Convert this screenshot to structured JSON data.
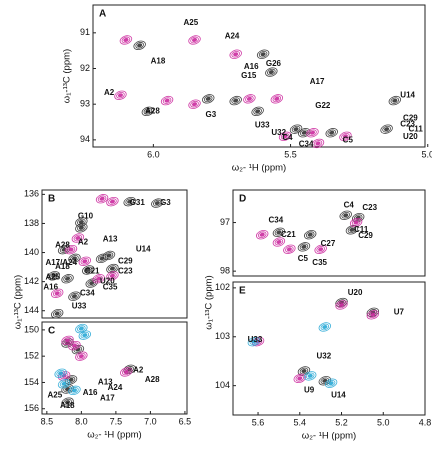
{
  "chart_data": [
    {
      "type": "scatter",
      "panel": "A",
      "xlabel": "ω₂- ¹H (ppm)",
      "ylabel": "ω₁-¹³C (ppm)",
      "xlim": [
        6.22,
        5.01
      ],
      "ylim": [
        90.22,
        94.2
      ],
      "xticks": [
        {
          "value": 6,
          "label": "6.0"
        },
        5.5,
        {
          "value": 5,
          "label": "5.0"
        }
      ],
      "yticks": [
        91,
        92,
        93,
        94
      ],
      "series": [
        {
          "color": "#333333",
          "x": [
            6.05,
            5.6,
            5.57,
            6.02,
            5.7,
            5.62,
            5.48,
            5.45,
            5.12,
            5.15,
            5.35,
            5.8
          ],
          "values": [
            91.35,
            91.6,
            92.1,
            93.2,
            92.9,
            93.2,
            93.7,
            93.8,
            92.9,
            93.7,
            93.8,
            92.85
          ]
        },
        {
          "color": "#cc2a9f",
          "x": [
            6.1,
            5.85,
            5.7,
            6.12,
            5.95,
            5.85,
            5.65,
            5.55,
            5.42,
            5.52,
            5.3,
            5.4
          ],
          "values": [
            91.2,
            91.2,
            91.6,
            92.75,
            92.9,
            93.0,
            92.85,
            92.85,
            93.8,
            93.9,
            93.9,
            94.1
          ]
        }
      ],
      "annotations": [
        {
          "text": "A25",
          "x": 5.89,
          "y": 90.72
        },
        {
          "text": "A24",
          "x": 5.74,
          "y": 91.1
        },
        {
          "text": "A18",
          "x": 6.01,
          "y": 91.8
        },
        {
          "text": "A16",
          "x": 5.67,
          "y": 91.95
        },
        {
          "text": "G26",
          "x": 5.59,
          "y": 91.87
        },
        {
          "text": "G15",
          "x": 5.68,
          "y": 92.2
        },
        {
          "text": "A17",
          "x": 5.43,
          "y": 92.37
        },
        {
          "text": "U14",
          "x": 5.1,
          "y": 92.76
        },
        {
          "text": "A2",
          "x": 6.18,
          "y": 92.68
        },
        {
          "text": "G22",
          "x": 5.41,
          "y": 93.05
        },
        {
          "text": "A28",
          "x": 6.03,
          "y": 93.2
        },
        {
          "text": "G3",
          "x": 5.81,
          "y": 93.3
        },
        {
          "text": "U33",
          "x": 5.63,
          "y": 93.6
        },
        {
          "text": "C29",
          "x": 5.09,
          "y": 93.4
        },
        {
          "text": "U32",
          "x": 5.57,
          "y": 93.8
        },
        {
          "text": "C4",
          "x": 5.53,
          "y": 93.95
        },
        {
          "text": "C34",
          "x": 5.47,
          "y": 94.13
        },
        {
          "text": "C5",
          "x": 5.31,
          "y": 94.02
        },
        {
          "text": "C23",
          "x": 5.1,
          "y": 93.57
        },
        {
          "text": "C11",
          "x": 5.07,
          "y": 93.71
        },
        {
          "text": "U20",
          "x": 5.09,
          "y": 93.92
        }
      ]
    },
    {
      "type": "scatter",
      "panel": "B",
      "ylabel": "ω₁-¹³C (ppm)",
      "xlim": [
        8.57,
        6.47
      ],
      "ylim": [
        135.7,
        144.5
      ],
      "yticks": [
        136,
        138,
        140,
        142,
        144
      ],
      "series": [
        {
          "color": "#333333",
          "x": [
            7.3,
            6.9,
            8.0,
            8.0,
            8.25,
            8.1,
            7.7,
            8.4,
            8.2,
            7.85,
            7.9,
            7.55,
            7.6,
            8.1,
            8.35
          ],
          "values": [
            136.5,
            136.6,
            137.9,
            138.3,
            139.8,
            140.4,
            140.4,
            141.6,
            141.8,
            142.1,
            141.2,
            141.1,
            140.2,
            143.0,
            144.2
          ]
        },
        {
          "color": "#cc2a9f",
          "x": [
            7.7,
            7.55,
            8.05,
            8.15,
            7.95,
            8.35,
            7.75,
            7.55
          ],
          "values": [
            136.3,
            136.5,
            139.0,
            139.8,
            140.6,
            142.8,
            141.8,
            141.6
          ]
        }
      ],
      "annotations": [
        {
          "text": "G10",
          "x": 8.05,
          "y": 137.5
        },
        {
          "text": "G31",
          "x": 7.3,
          "y": 136.6
        },
        {
          "text": "G3",
          "x": 6.86,
          "y": 136.6
        },
        {
          "text": "A28",
          "x": 8.38,
          "y": 139.5
        },
        {
          "text": "A2",
          "x": 8.05,
          "y": 139.3
        },
        {
          "text": "A13",
          "x": 7.69,
          "y": 139.1
        },
        {
          "text": "U14",
          "x": 7.21,
          "y": 139.8
        },
        {
          "text": "A17/A24",
          "x": 8.52,
          "y": 140.7
        },
        {
          "text": "A18",
          "x": 8.38,
          "y": 141.0
        },
        {
          "text": "C21",
          "x": 7.95,
          "y": 141.3
        },
        {
          "text": "C29",
          "x": 7.47,
          "y": 140.6
        },
        {
          "text": "C23",
          "x": 7.47,
          "y": 141.3
        },
        {
          "text": "A25",
          "x": 8.52,
          "y": 141.7
        },
        {
          "text": "U20",
          "x": 7.73,
          "y": 142.0
        },
        {
          "text": "C35",
          "x": 7.69,
          "y": 142.4
        },
        {
          "text": "C34",
          "x": 8.02,
          "y": 142.8
        },
        {
          "text": "A16",
          "x": 8.55,
          "y": 142.4
        },
        {
          "text": "U33",
          "x": 8.14,
          "y": 143.7
        }
      ]
    },
    {
      "type": "scatter",
      "panel": "C",
      "xlabel": "ω₂- ¹H (ppm)",
      "xlim": [
        8.57,
        6.47
      ],
      "ylim": [
        149.4,
        156.4
      ],
      "xticks": [
        8.5,
        {
          "value": 8,
          "label": "8.0"
        },
        7.5,
        {
          "value": 7,
          "label": "7.0"
        },
        6.5
      ],
      "yticks": [
        150,
        152,
        154,
        156
      ],
      "series": [
        {
          "color": "#333333",
          "x": [
            8.2,
            8.05,
            7.3,
            8.2,
            8.15,
            8.2
          ],
          "values": [
            151.0,
            151.5,
            153.0,
            155.5,
            153.8,
            154.5
          ]
        },
        {
          "color": "#cc2a9f",
          "x": [
            8.2,
            8.1,
            8.0,
            7.35,
            8.25
          ],
          "values": [
            150.8,
            151.2,
            152.0,
            153.2,
            153.5
          ]
        },
        {
          "color": "#29a9d6",
          "x": [
            8.0,
            7.95,
            8.3,
            8.25,
            8.1
          ],
          "values": [
            149.9,
            150.4,
            153.3,
            154.1,
            154.6
          ]
        }
      ],
      "annotations": [
        {
          "text": "A2",
          "x": 7.25,
          "y": 153.1
        },
        {
          "text": "A28",
          "x": 7.08,
          "y": 153.8
        },
        {
          "text": "A24",
          "x": 7.62,
          "y": 154.4
        },
        {
          "text": "A13",
          "x": 7.76,
          "y": 154.0
        },
        {
          "text": "A16",
          "x": 7.98,
          "y": 154.8
        },
        {
          "text": "A17",
          "x": 7.73,
          "y": 155.2
        },
        {
          "text": "A25",
          "x": 8.49,
          "y": 155.0
        },
        {
          "text": "A18",
          "x": 8.31,
          "y": 155.8
        }
      ]
    },
    {
      "type": "scatter",
      "panel": "D",
      "ylabel": "ω₁-¹³C (ppm)",
      "xlim": [
        5.72,
        4.8
      ],
      "ylim": [
        96.33,
        98.1
      ],
      "yticks": [
        97,
        98
      ],
      "series": [
        {
          "color": "#333333",
          "x": [
            5.18,
            5.12,
            5.5,
            5.35,
            5.38,
            5.15
          ],
          "values": [
            96.85,
            96.9,
            97.2,
            97.25,
            97.5,
            97.15
          ]
        },
        {
          "color": "#cc2a9f",
          "x": [
            5.58,
            5.5,
            5.45,
            5.13,
            5.3
          ],
          "values": [
            97.25,
            97.4,
            97.55,
            97.0,
            97.55
          ]
        }
      ],
      "annotations": [
        {
          "text": "C4",
          "x": 5.19,
          "y": 96.65
        },
        {
          "text": "C23",
          "x": 5.1,
          "y": 96.7
        },
        {
          "text": "C34",
          "x": 5.55,
          "y": 96.96
        },
        {
          "text": "C11",
          "x": 5.14,
          "y": 97.15
        },
        {
          "text": "C29",
          "x": 5.12,
          "y": 97.27
        },
        {
          "text": "C21",
          "x": 5.49,
          "y": 97.25
        },
        {
          "text": "C27",
          "x": 5.3,
          "y": 97.44
        },
        {
          "text": "C5",
          "x": 5.41,
          "y": 97.75
        },
        {
          "text": "C35",
          "x": 5.34,
          "y": 97.83
        }
      ]
    },
    {
      "type": "scatter",
      "panel": "E",
      "xlabel": "ω₂- ¹H (ppm)",
      "xlim": [
        5.72,
        4.8
      ],
      "ylim": [
        101.88,
        104.6
      ],
      "xticks": [
        5.6,
        5.4,
        5.2,
        {
          "value": 5,
          "label": "5.0"
        },
        4.8
      ],
      "yticks": [
        102,
        103,
        104
      ],
      "series": [
        {
          "color": "#333333",
          "x": [
            5.2,
            5.05,
            5.38,
            5.28
          ],
          "values": [
            102.3,
            102.5,
            103.7,
            103.9
          ]
        },
        {
          "color": "#cc2a9f",
          "x": [
            5.6,
            5.4,
            5.05,
            5.2
          ],
          "values": [
            103.1,
            103.85,
            102.55,
            102.35
          ]
        },
        {
          "color": "#29a9d6",
          "x": [
            5.62,
            5.35,
            5.25,
            5.28
          ],
          "values": [
            103.1,
            103.8,
            103.95,
            102.8
          ]
        }
      ],
      "annotations": [
        {
          "text": "U20",
          "x": 5.17,
          "y": 102.1
        },
        {
          "text": "U7",
          "x": 4.95,
          "y": 102.5
        },
        {
          "text": "U33",
          "x": 5.65,
          "y": 103.06
        },
        {
          "text": "U32",
          "x": 5.32,
          "y": 103.4
        },
        {
          "text": "U9",
          "x": 5.38,
          "y": 104.1
        },
        {
          "text": "U14",
          "x": 5.25,
          "y": 104.2
        }
      ]
    }
  ]
}
